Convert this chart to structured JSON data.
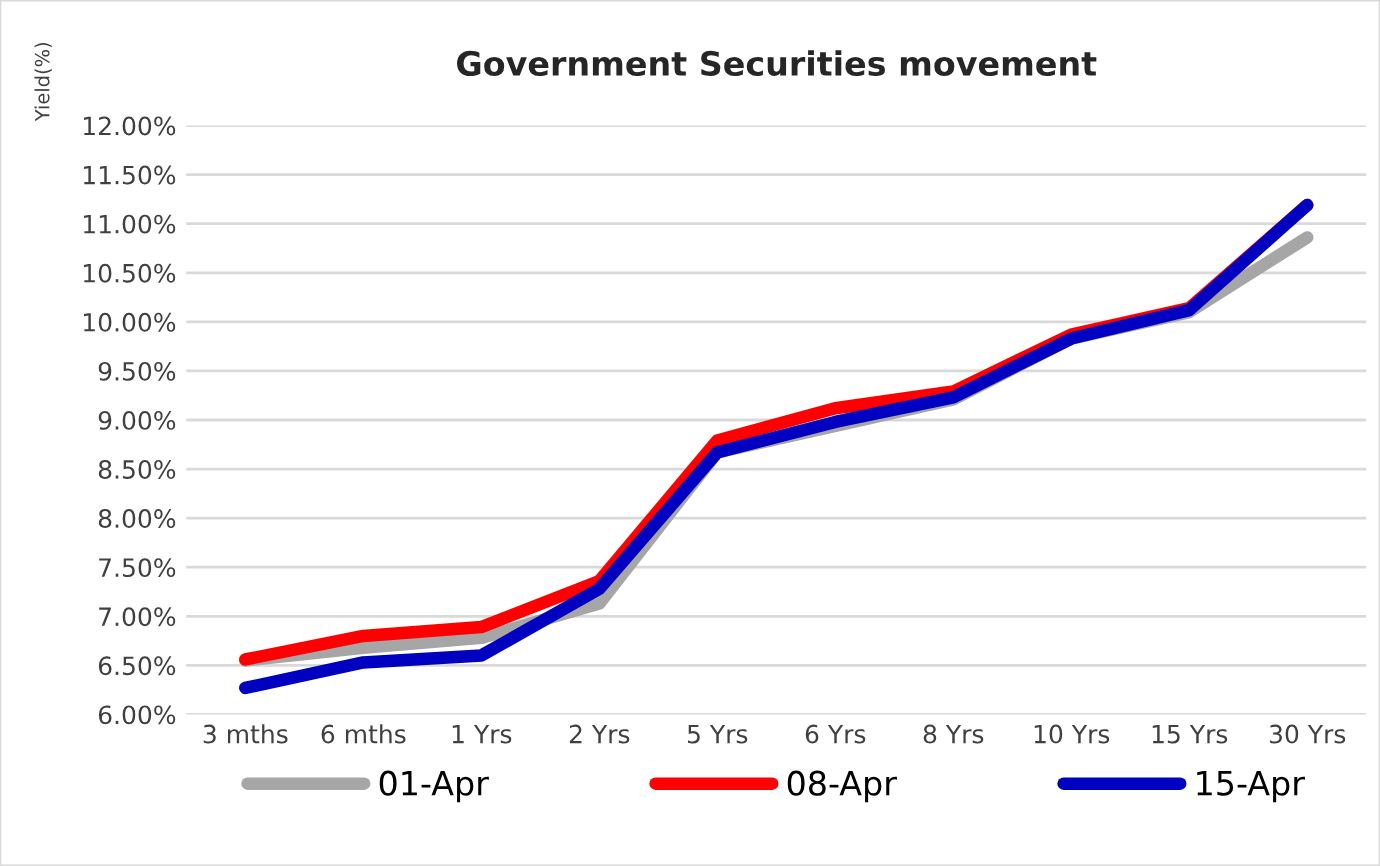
{
  "chart_data": {
    "type": "line",
    "title": "Government Securities movement",
    "ylabel": "Yield(%)",
    "categories": [
      "3 mths",
      "6 mths",
      "1 Yrs",
      "2 Yrs",
      "5 Yrs",
      "6 Yrs",
      "8 Yrs",
      "10 Yrs",
      "15 Yrs",
      "30 Yrs"
    ],
    "series": [
      {
        "name": "01-Apr",
        "color": "#a6a6a6",
        "values": [
          6.55,
          6.68,
          6.78,
          7.13,
          8.67,
          8.94,
          9.21,
          9.83,
          10.1,
          10.86
        ]
      },
      {
        "name": "08-Apr",
        "color": "#ff0000",
        "values": [
          6.56,
          6.8,
          6.89,
          7.36,
          8.79,
          9.12,
          9.29,
          9.87,
          10.14,
          11.19
        ]
      },
      {
        "name": "15-Apr",
        "color": "#0000c0",
        "values": [
          6.27,
          6.53,
          6.6,
          7.28,
          8.67,
          8.98,
          9.23,
          9.83,
          10.12,
          11.19
        ]
      }
    ],
    "ylim": [
      6.0,
      12.0
    ],
    "yticks": [
      {
        "value": 6.0,
        "label": "6.00%"
      },
      {
        "value": 6.5,
        "label": "6.50%"
      },
      {
        "value": 7.0,
        "label": "7.00%"
      },
      {
        "value": 7.5,
        "label": "7.50%"
      },
      {
        "value": 8.0,
        "label": "8.00%"
      },
      {
        "value": 8.5,
        "label": "8.50%"
      },
      {
        "value": 9.0,
        "label": "9.00%"
      },
      {
        "value": 9.5,
        "label": "9.50%"
      },
      {
        "value": 10.0,
        "label": "10.00%"
      },
      {
        "value": 10.5,
        "label": "10.50%"
      },
      {
        "value": 11.0,
        "label": "11.00%"
      },
      {
        "value": 11.5,
        "label": "11.50%"
      },
      {
        "value": 12.0,
        "label": "12.00%"
      }
    ],
    "grid": "y",
    "legend": "bottom",
    "marker": "none",
    "line_style": "solid"
  }
}
